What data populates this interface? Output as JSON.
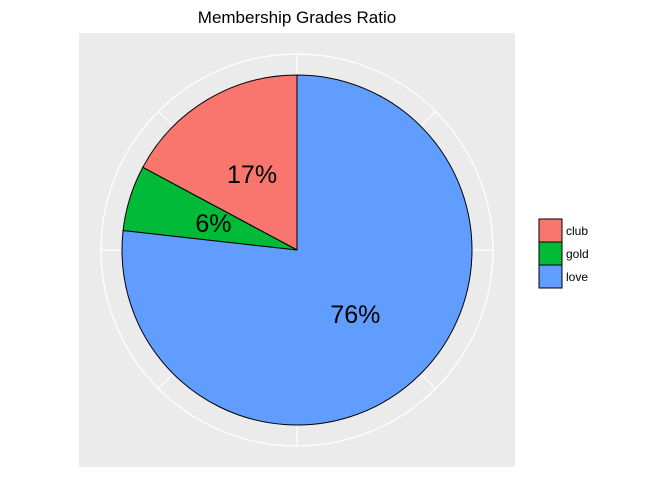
{
  "chart_data": {
    "type": "pie",
    "title": "Membership Grades Ratio",
    "slices": [
      {
        "name": "club",
        "value": 17,
        "label": "17%",
        "color": "#F8766D"
      },
      {
        "name": "gold",
        "value": 6,
        "label": "6%",
        "color": "#00BA38"
      },
      {
        "name": "love",
        "value": 76,
        "label": "76%",
        "color": "#619CFF"
      }
    ],
    "legend": {
      "position": "right",
      "entries": [
        "club",
        "gold",
        "love"
      ]
    },
    "grid": true,
    "start_angle": "12 o'clock",
    "direction": "counterclockwise"
  }
}
